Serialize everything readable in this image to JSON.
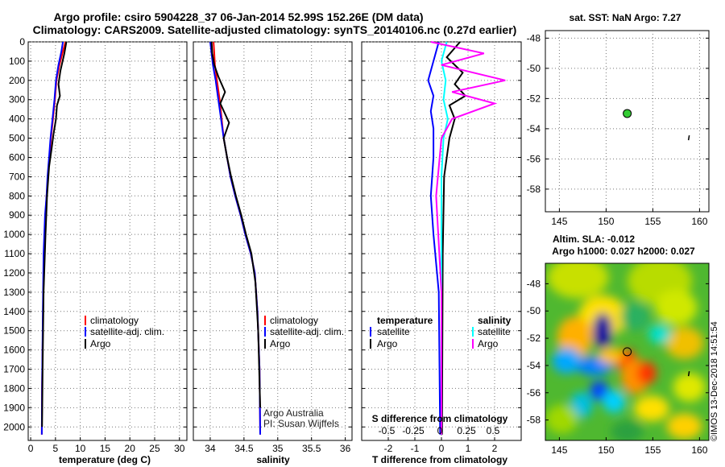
{
  "title": {
    "line1": "Argo profile: csiro 5904228_37 06-Jan-2014 52.99S 152.26E (DM data)",
    "line2": "Climatology: CARS2009. Satellite-adjusted climatology: synTS_20140106.nc (0.27d earlier)"
  },
  "colors": {
    "climatology": "#ff0000",
    "satellite": "#0000ff",
    "argo": "#000000",
    "sal_satellite": "#00ffff",
    "sal_argo": "#ff00ff",
    "float_marker": "#33cc33"
  },
  "chart_data": [
    {
      "id": "temperature",
      "type": "line",
      "xlabel": "temperature (deg C)",
      "ylabel": "",
      "xlim": [
        -0.5,
        31.5
      ],
      "ylim": [
        2070,
        0
      ],
      "xticks": [
        0,
        5,
        10,
        15,
        20,
        25,
        30
      ],
      "yticks": [
        0,
        100,
        200,
        300,
        400,
        500,
        600,
        700,
        800,
        900,
        1000,
        1100,
        1200,
        1300,
        1400,
        1500,
        1600,
        1700,
        1800,
        1900,
        2000
      ],
      "legend": [
        "climatology",
        "satellite-adj. clim.",
        "Argo"
      ],
      "series": [
        {
          "name": "climatology",
          "color": "#ff0000",
          "x": [
            7.0,
            6.5,
            5.8,
            5.2,
            4.9,
            4.5,
            4.1,
            3.8,
            3.5,
            3.2,
            3.0,
            2.7,
            2.5,
            2.3,
            2.25
          ],
          "y": [
            0,
            50,
            120,
            200,
            300,
            400,
            500,
            600,
            700,
            800,
            900,
            1100,
            1400,
            1800,
            2040
          ]
        },
        {
          "name": "satellite-adj. clim.",
          "color": "#0000ff",
          "x": [
            6.5,
            6.2,
            5.6,
            5.1,
            4.8,
            4.4,
            4.0,
            3.7,
            3.4,
            3.2,
            2.9,
            2.6,
            2.45,
            2.3,
            2.25
          ],
          "y": [
            0,
            50,
            120,
            200,
            300,
            400,
            500,
            600,
            700,
            800,
            900,
            1100,
            1400,
            1800,
            2040
          ]
        },
        {
          "name": "Argo",
          "color": "#000000",
          "x": [
            7.2,
            6.8,
            6.0,
            5.6,
            5.9,
            5.3,
            5.1,
            4.6,
            4.2,
            3.7,
            3.3,
            3.0,
            2.6,
            2.4,
            2.3
          ],
          "y": [
            0,
            60,
            150,
            220,
            280,
            330,
            400,
            480,
            560,
            650,
            800,
            1000,
            1300,
            1700,
            2000
          ]
        }
      ]
    },
    {
      "id": "salinity",
      "type": "line",
      "xlabel": "salinity",
      "xlim": [
        33.75,
        36.1
      ],
      "ylim": [
        2070,
        0
      ],
      "xticks": [
        34,
        34.5,
        35,
        35.5,
        36
      ],
      "legend": [
        "climatology",
        "satellite-adj. clim.",
        "Argo"
      ],
      "credit": [
        "Argo Australia",
        "PI: Susan Wijffels"
      ],
      "series": [
        {
          "name": "climatology",
          "color": "#ff0000",
          "x": [
            34.05,
            34.06,
            34.07,
            34.1,
            34.14,
            34.17,
            34.2,
            34.25,
            34.3,
            34.37,
            34.45,
            34.52,
            34.6,
            34.66,
            34.7,
            34.73,
            34.74
          ],
          "y": [
            0,
            60,
            120,
            200,
            300,
            400,
            500,
            600,
            700,
            800,
            900,
            1000,
            1100,
            1200,
            1400,
            1700,
            2040
          ]
        },
        {
          "name": "satellite-adj. clim.",
          "color": "#0000ff",
          "x": [
            34.0,
            34.02,
            34.04,
            34.08,
            34.12,
            34.16,
            34.2,
            34.25,
            34.3,
            34.37,
            34.45,
            34.52,
            34.6,
            34.66,
            34.7,
            34.73,
            34.74
          ],
          "y": [
            0,
            60,
            120,
            200,
            300,
            400,
            500,
            600,
            700,
            800,
            900,
            1000,
            1100,
            1200,
            1400,
            1700,
            2040
          ]
        },
        {
          "name": "Argo",
          "color": "#000000",
          "x": [
            34.02,
            34.03,
            34.06,
            34.12,
            34.22,
            34.15,
            34.28,
            34.2,
            34.25,
            34.31,
            34.38,
            34.46,
            34.53,
            34.61,
            34.67,
            34.71,
            34.74
          ],
          "y": [
            0,
            60,
            120,
            180,
            260,
            320,
            420,
            500,
            600,
            700,
            800,
            900,
            1000,
            1100,
            1250,
            1500,
            1900
          ]
        }
      ]
    },
    {
      "id": "differences",
      "type": "line",
      "xlabel": "T difference from climatology",
      "top_axis_label": "S difference from climatology",
      "xlim": [
        -3,
        3
      ],
      "ylim": [
        2070,
        0
      ],
      "xticks": [
        -2,
        -1,
        0,
        1,
        2
      ],
      "top_ticks": [
        "-0.5",
        "-0.25",
        "0",
        "0.25",
        "0.5"
      ],
      "legend_temperature": [
        "temperature",
        "satellite",
        "Argo"
      ],
      "legend_salinity": [
        "salinity",
        "satellite",
        "Argo"
      ],
      "series": [
        {
          "name": "T satellite",
          "color": "#0000ff",
          "x": [
            -0.1,
            -0.3,
            -0.5,
            -0.3,
            -0.4,
            -0.3,
            -0.3,
            -0.4,
            -0.3,
            -0.1,
            -0.05
          ],
          "y": [
            0,
            100,
            200,
            280,
            360,
            450,
            600,
            800,
            1000,
            1300,
            2040
          ]
        },
        {
          "name": "T Argo",
          "color": "#000000",
          "x": [
            0.7,
            0.2,
            0.8,
            0.5,
            0.9,
            0.3,
            0.5,
            0.3,
            0.1,
            0.05,
            0.02
          ],
          "y": [
            0,
            80,
            160,
            220,
            280,
            330,
            400,
            500,
            700,
            1100,
            2040
          ]
        },
        {
          "name": "S satellite",
          "color": "#00ffff",
          "x": [
            0.05,
            0.0,
            0.04,
            0.02,
            0.06,
            0.02,
            0.0,
            0.0,
            0.0,
            0.0
          ],
          "y": [
            0,
            100,
            200,
            300,
            400,
            500,
            700,
            1000,
            1500,
            2040
          ]
        },
        {
          "name": "S Argo",
          "color": "#ff00ff",
          "x": [
            -0.1,
            0.4,
            0.0,
            0.6,
            0.1,
            0.5,
            0.1,
            0.0,
            -0.05,
            0.0,
            0.0
          ],
          "y": [
            0,
            60,
            120,
            200,
            260,
            320,
            400,
            500,
            800,
            1300,
            2040
          ]
        }
      ]
    },
    {
      "id": "sst_map",
      "type": "scatter",
      "title": "sat. SST: NaN Argo: 7.27",
      "xlim": [
        143.5,
        161
      ],
      "ylim": [
        -59.5,
        -47.5
      ],
      "xticks": [
        145,
        150,
        155,
        160
      ],
      "yticks": [
        -48,
        -50,
        -52,
        -54,
        -56,
        -58
      ],
      "points": [
        {
          "lon": 152.26,
          "lat": -52.99
        }
      ]
    },
    {
      "id": "sla_map",
      "type": "heatmap",
      "title": "Altim. SLA: -0.012",
      "subtitle": "Argo h1000: 0.027 h2000: 0.027",
      "xlim": [
        143.5,
        161
      ],
      "ylim": [
        -59.5,
        -46.5
      ],
      "xticks": [
        145,
        150,
        155,
        160
      ],
      "yticks": [
        -48,
        -50,
        -52,
        -54,
        -56,
        -58
      ],
      "points": [
        {
          "lon": 152.26,
          "lat": -52.99
        }
      ],
      "credit": "©IMOS 13-Dec-2018 14:51:54"
    }
  ]
}
